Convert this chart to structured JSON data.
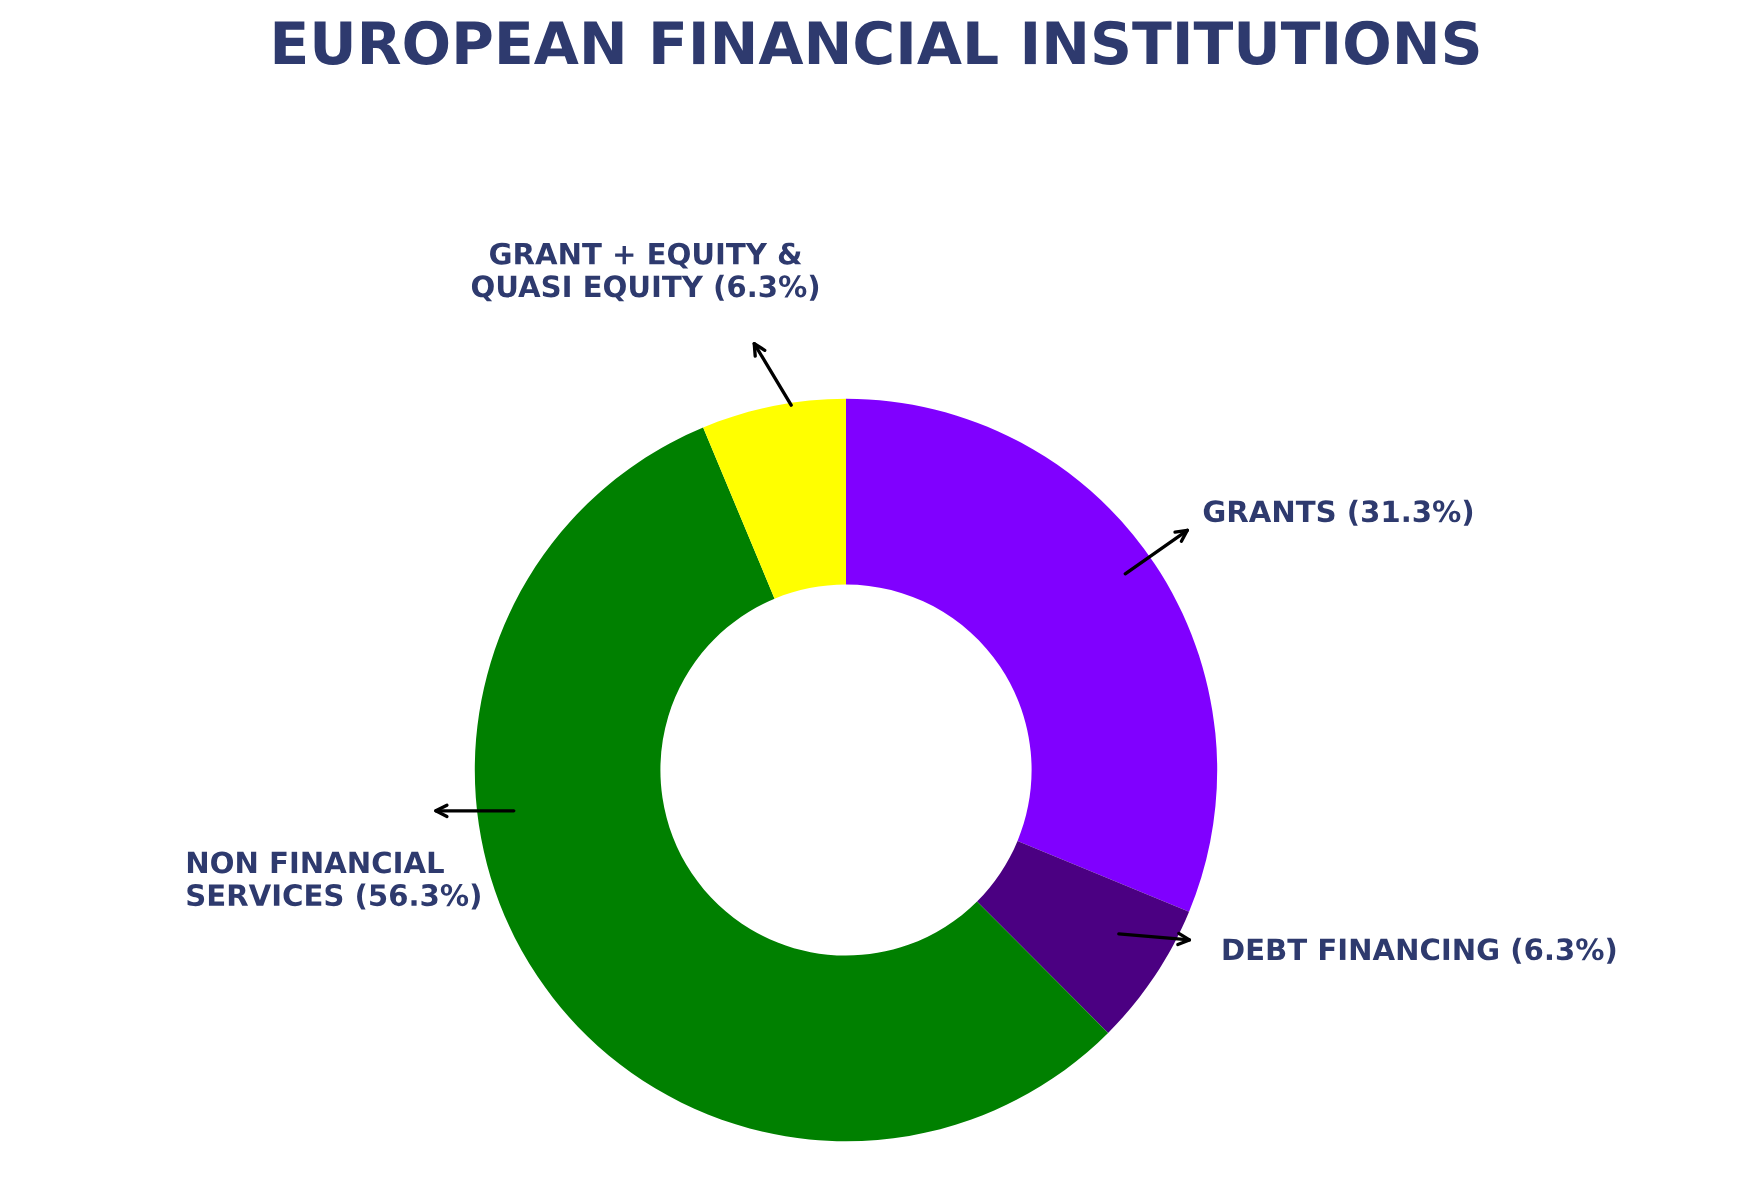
{
  "chart_data": {
    "type": "donut",
    "title": "EUROPEAN FINANCIAL INSTITUTIONS",
    "categories": [
      "GRANTS (31.3%)",
      "DEBT FINANCING (6.3%)",
      "NON FINANCIAL\nSERVICES (56.3%)",
      "GRANT + EQUITY &\nQUASI EQUITY (6.3%)"
    ],
    "values": [
      31.3,
      6.3,
      56.3,
      6.3
    ],
    "colors": [
      "#8000ff",
      "#4b0082",
      "#008000",
      "#ffff00"
    ],
    "legend": false
  }
}
